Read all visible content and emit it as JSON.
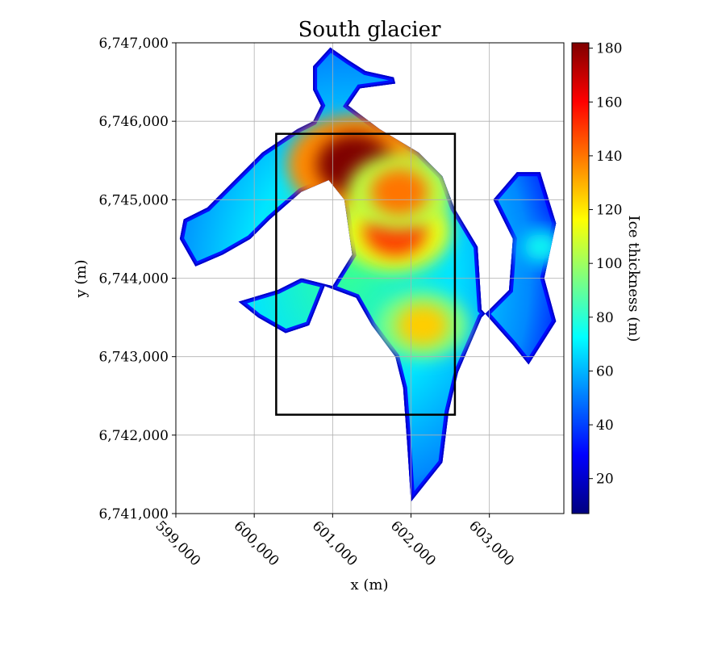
{
  "chart_data": {
    "type": "heatmap",
    "title": "South glacier",
    "xlabel": "x (m)",
    "ylabel": "y (m)",
    "xlim": [
      599000,
      603950
    ],
    "ylim": [
      6741000,
      6747000
    ],
    "x_ticks": [
      599000,
      600000,
      601000,
      602000,
      603000
    ],
    "x_tick_labels": [
      "599,000",
      "600,000",
      "601,000",
      "602,000",
      "603,000"
    ],
    "y_ticks": [
      6741000,
      6742000,
      6743000,
      6744000,
      6745000,
      6746000,
      6747000
    ],
    "y_tick_labels": [
      "6,741,000",
      "6,742,000",
      "6,743,000",
      "6,744,000",
      "6,745,000",
      "6,746,000",
      "6,747,000"
    ],
    "grid": true,
    "colormap": "jet",
    "colorbar": {
      "label": "Ice thickness (m)",
      "range": [
        7,
        182
      ],
      "ticks": [
        20,
        40,
        60,
        80,
        100,
        120,
        140,
        160,
        180
      ],
      "tick_labels": [
        "20",
        "40",
        "60",
        "80",
        "100",
        "120",
        "140",
        "160",
        "180"
      ],
      "colors": [
        "#00007f",
        "#0000ff",
        "#007fff",
        "#00ffff",
        "#7fff7f",
        "#ffff00",
        "#ff7f00",
        "#ff0000",
        "#7f0000"
      ]
    },
    "rectangle": {
      "x": [
        600280,
        602560
      ],
      "y": [
        6742260,
        6745840
      ],
      "color": "#000000"
    },
    "ice_extent": {
      "main": [
        [
          600970,
          6746940
        ],
        [
          601200,
          6746780
        ],
        [
          601420,
          6746640
        ],
        [
          601780,
          6746560
        ],
        [
          601800,
          6746480
        ],
        [
          601350,
          6746420
        ],
        [
          601200,
          6746200
        ],
        [
          601600,
          6745900
        ],
        [
          602100,
          6745600
        ],
        [
          602400,
          6745300
        ],
        [
          602550,
          6744900
        ],
        [
          602850,
          6744400
        ],
        [
          602900,
          6743600
        ],
        [
          603300,
          6743150
        ],
        [
          603500,
          6742900
        ],
        [
          603850,
          6743450
        ],
        [
          603700,
          6744000
        ],
        [
          603850,
          6744700
        ],
        [
          603650,
          6745350
        ],
        [
          603350,
          6745350
        ],
        [
          603050,
          6745000
        ],
        [
          603300,
          6744500
        ],
        [
          603250,
          6743850
        ],
        [
          602900,
          6743500
        ],
        [
          602600,
          6742800
        ],
        [
          602480,
          6742300
        ],
        [
          602400,
          6741650
        ],
        [
          602000,
          6741150
        ],
        [
          601950,
          6741900
        ],
        [
          601900,
          6742600
        ],
        [
          601800,
          6743000
        ],
        [
          601500,
          6743400
        ],
        [
          601300,
          6743750
        ],
        [
          600900,
          6743900
        ],
        [
          600700,
          6743400
        ],
        [
          600400,
          6743300
        ],
        [
          600050,
          6743500
        ],
        [
          599800,
          6743700
        ],
        [
          600300,
          6743850
        ],
        [
          600600,
          6744000
        ],
        [
          601000,
          6743900
        ],
        [
          601250,
          6744300
        ],
        [
          601150,
          6745000
        ],
        [
          600950,
          6745250
        ],
        [
          600600,
          6745100
        ],
        [
          600200,
          6744750
        ],
        [
          599950,
          6744500
        ],
        [
          599600,
          6744300
        ],
        [
          599250,
          6744150
        ],
        [
          599050,
          6744500
        ],
        [
          599100,
          6744750
        ],
        [
          599400,
          6744900
        ],
        [
          599700,
          6745200
        ],
        [
          599900,
          6745400
        ],
        [
          600100,
          6745600
        ],
        [
          600550,
          6745900
        ],
        [
          600750,
          6746000
        ],
        [
          600850,
          6746200
        ],
        [
          600750,
          6746400
        ],
        [
          600750,
          6746700
        ]
      ],
      "peaks": [
        {
          "x": 601280,
          "y": 6745450,
          "thickness": 182
        },
        {
          "x": 601800,
          "y": 6744600,
          "thickness": 150
        },
        {
          "x": 601850,
          "y": 6745100,
          "thickness": 140
        },
        {
          "x": 602150,
          "y": 6743400,
          "thickness": 125
        },
        {
          "x": 603650,
          "y": 6744400,
          "thickness": 75
        }
      ]
    }
  }
}
